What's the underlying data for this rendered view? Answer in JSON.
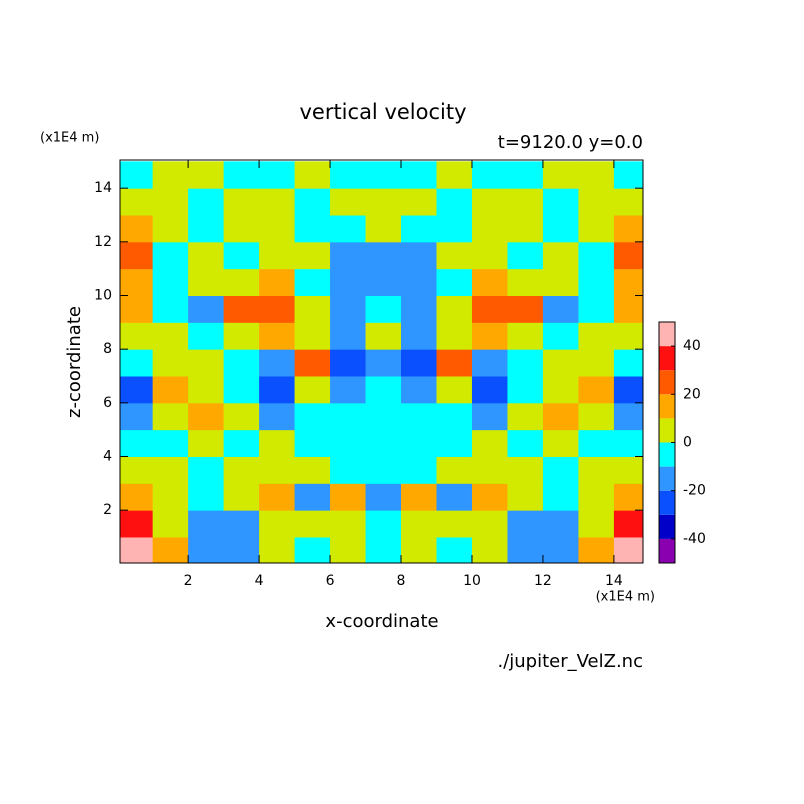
{
  "chart_data": {
    "type": "contour",
    "title": "vertical velocity",
    "subtitle": "t=9120.0 y=0.0",
    "y_unit": "(x1E4 m)",
    "x_unit": "(x1E4 m)",
    "x_label": "x-coordinate",
    "y_label": "z-coordinate",
    "source": "./jupiter_VelZ.nc",
    "xlim": [
      0.08,
      14.82
    ],
    "ylim": [
      0.03,
      15.05
    ],
    "xticks": [
      2,
      4,
      6,
      8,
      10,
      12,
      14
    ],
    "yticks": [
      2,
      4,
      6,
      8,
      10,
      12,
      14
    ],
    "x": [
      0.5,
      1.5,
      2.5,
      3.5,
      4.5,
      5.5,
      6.5,
      7.5,
      8.5,
      9.5,
      10.5,
      11.5,
      12.5,
      13.5,
      14.5
    ],
    "y": [
      0.5,
      1.5,
      2.5,
      3.5,
      4.5,
      5.5,
      6.5,
      7.5,
      8.5,
      9.5,
      10.5,
      11.5,
      12.5,
      13.5,
      14.5
    ],
    "z": [
      [
        45,
        15,
        -15,
        -15,
        5,
        -5,
        5,
        -5,
        5,
        -5,
        5,
        -15,
        -15,
        15,
        45
      ],
      [
        35,
        5,
        -15,
        -15,
        5,
        5,
        5,
        -5,
        5,
        5,
        5,
        -15,
        -15,
        5,
        35
      ],
      [
        15,
        5,
        -5,
        5,
        15,
        -15,
        15,
        -15,
        15,
        -15,
        15,
        5,
        -5,
        5,
        15
      ],
      [
        5,
        5,
        -5,
        5,
        5,
        5,
        -5,
        -5,
        -5,
        5,
        5,
        5,
        -5,
        5,
        5
      ],
      [
        -5,
        -5,
        5,
        -5,
        5,
        -5,
        -5,
        -5,
        -5,
        -5,
        5,
        -5,
        5,
        -5,
        -5
      ],
      [
        -15,
        5,
        15,
        5,
        -15,
        -5,
        -5,
        -5,
        -5,
        -5,
        -15,
        5,
        15,
        5,
        -15
      ],
      [
        -25,
        15,
        5,
        -5,
        -25,
        5,
        -15,
        -5,
        -15,
        5,
        -25,
        -5,
        5,
        15,
        -25
      ],
      [
        -5,
        5,
        5,
        -5,
        -15,
        25,
        -25,
        -15,
        -25,
        25,
        -15,
        -5,
        5,
        5,
        -5
      ],
      [
        5,
        5,
        -5,
        5,
        15,
        5,
        -15,
        5,
        -15,
        5,
        15,
        5,
        -5,
        5,
        5
      ],
      [
        15,
        -5,
        -15,
        25,
        25,
        5,
        -15,
        -5,
        -15,
        5,
        25,
        25,
        -15,
        -5,
        15
      ],
      [
        15,
        -5,
        5,
        5,
        15,
        -5,
        -15,
        -15,
        -15,
        -5,
        15,
        5,
        5,
        -5,
        15
      ],
      [
        25,
        -5,
        5,
        -5,
        5,
        5,
        -15,
        -15,
        -15,
        5,
        5,
        -5,
        5,
        -5,
        25
      ],
      [
        15,
        5,
        -5,
        5,
        5,
        -5,
        -5,
        5,
        -5,
        -5,
        5,
        5,
        -5,
        5,
        15
      ],
      [
        5,
        5,
        -5,
        5,
        5,
        -5,
        5,
        5,
        5,
        -5,
        5,
        5,
        -5,
        5,
        5
      ],
      [
        -5,
        5,
        5,
        -5,
        -5,
        5,
        -5,
        -5,
        -5,
        5,
        -5,
        -5,
        5,
        5,
        -5
      ]
    ],
    "levels": [
      -50,
      -40,
      -30,
      -20,
      -10,
      0,
      10,
      20,
      30,
      40,
      50
    ],
    "colors": [
      "#8a00b0",
      "#0000c8",
      "#0a50ff",
      "#2f96ff",
      "#00ffff",
      "#d2ea00",
      "#ffa800",
      "#ff5a00",
      "#ff1010",
      "#ffb4b4"
    ],
    "colorbar_ticks": [
      -40,
      -20,
      0,
      20,
      40
    ]
  }
}
